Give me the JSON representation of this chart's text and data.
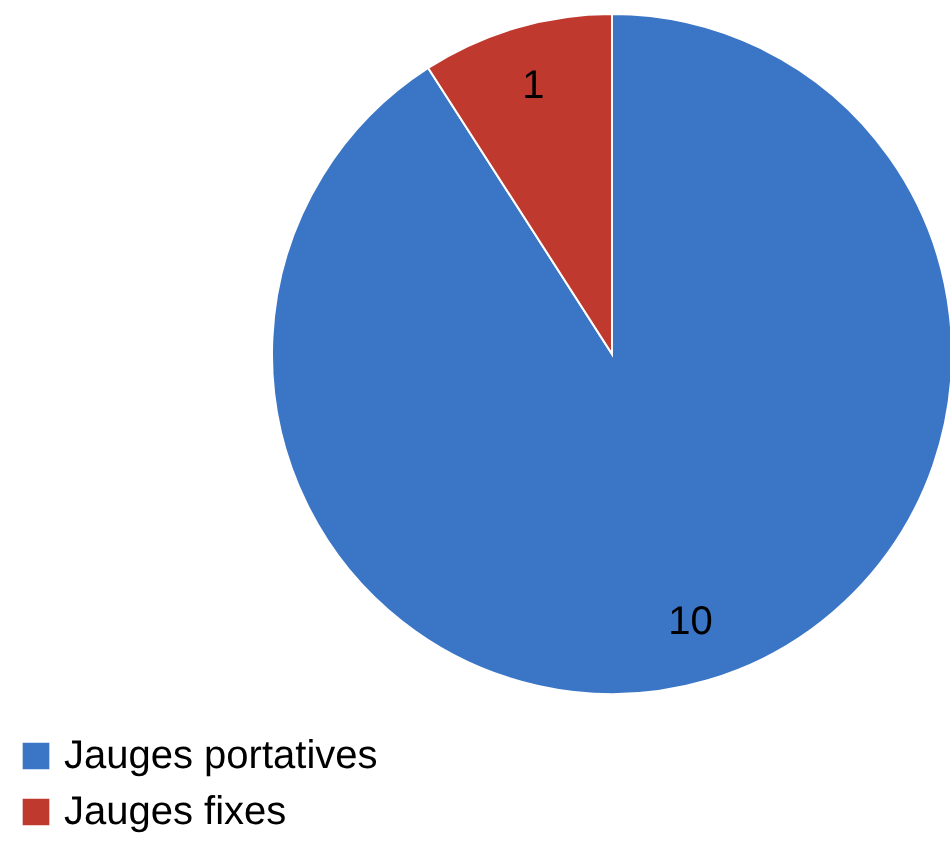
{
  "chart_data": {
    "type": "pie",
    "categories": [
      "Jauges portatives",
      "Jauges fixes"
    ],
    "values": [
      10,
      1
    ],
    "colors": [
      "#3b76c6",
      "#c0392f"
    ],
    "data_labels": true,
    "legend": "bottom left"
  }
}
